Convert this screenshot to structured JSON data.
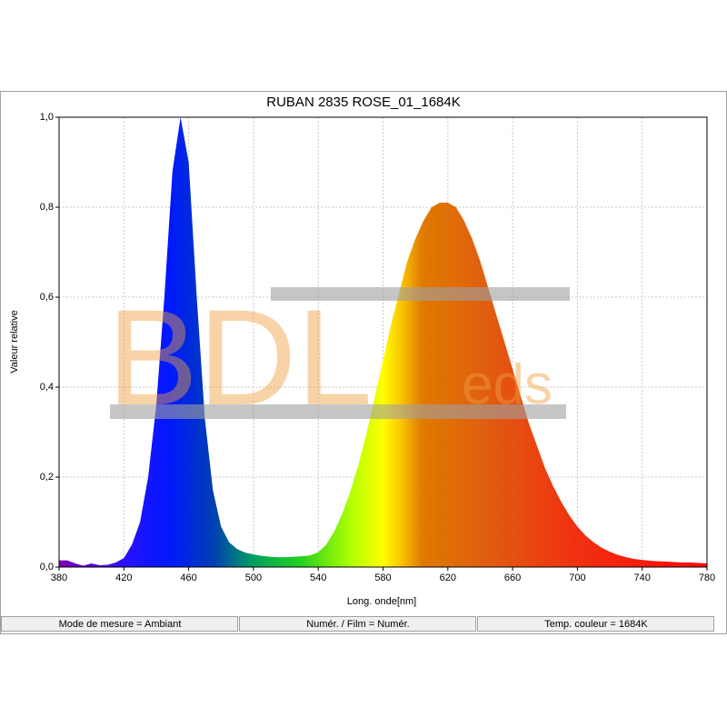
{
  "chart_data": {
    "type": "area",
    "title": "RUBAN 2835 ROSE_01_1684K",
    "x_label": "Long. onde[nm]",
    "y_label": "Valeur relative",
    "x": [
      380,
      385,
      390,
      395,
      400,
      405,
      410,
      415,
      420,
      425,
      430,
      435,
      440,
      445,
      450,
      455,
      460,
      465,
      470,
      475,
      480,
      485,
      490,
      495,
      500,
      505,
      510,
      515,
      520,
      525,
      530,
      535,
      540,
      545,
      550,
      555,
      560,
      565,
      570,
      575,
      580,
      585,
      590,
      595,
      600,
      605,
      610,
      615,
      620,
      625,
      630,
      635,
      640,
      645,
      650,
      655,
      660,
      665,
      670,
      675,
      680,
      685,
      690,
      695,
      700,
      705,
      710,
      715,
      720,
      725,
      730,
      735,
      740,
      745,
      750,
      755,
      760,
      765,
      770,
      775,
      780
    ],
    "values": [
      0.015,
      0.015,
      0.008,
      0.003,
      0.008,
      0.004,
      0.005,
      0.01,
      0.02,
      0.05,
      0.1,
      0.2,
      0.36,
      0.6,
      0.88,
      1.0,
      0.9,
      0.6,
      0.33,
      0.17,
      0.09,
      0.055,
      0.04,
      0.032,
      0.028,
      0.025,
      0.023,
      0.022,
      0.022,
      0.023,
      0.024,
      0.026,
      0.033,
      0.05,
      0.08,
      0.12,
      0.17,
      0.23,
      0.3,
      0.38,
      0.46,
      0.54,
      0.61,
      0.68,
      0.73,
      0.77,
      0.8,
      0.81,
      0.81,
      0.8,
      0.77,
      0.73,
      0.68,
      0.62,
      0.56,
      0.5,
      0.44,
      0.38,
      0.32,
      0.27,
      0.22,
      0.18,
      0.145,
      0.115,
      0.09,
      0.07,
      0.055,
      0.043,
      0.034,
      0.027,
      0.022,
      0.018,
      0.016,
      0.014,
      0.013,
      0.012,
      0.011,
      0.01,
      0.01,
      0.009,
      0.008
    ],
    "xlim": [
      380,
      780
    ],
    "ylim": [
      0,
      1
    ],
    "xticks": [
      380,
      420,
      460,
      500,
      540,
      580,
      620,
      660,
      700,
      740,
      780
    ],
    "yticks": [
      {
        "value": 0,
        "label": "0,0"
      },
      {
        "value": 0.2,
        "label": "0,2"
      },
      {
        "value": 0.4,
        "label": "0,4"
      },
      {
        "value": 0.6,
        "label": "0,6"
      },
      {
        "value": 0.8,
        "label": "0,8"
      },
      {
        "value": 1,
        "label": "1,0"
      }
    ],
    "grid": true
  },
  "watermark": {
    "main": "BDL",
    "suffix": "eds"
  },
  "status_bar": [
    "Mode de mesure = Ambiant",
    "Numér. / Film = Numér.",
    "Temp. couleur = 1684K"
  ]
}
